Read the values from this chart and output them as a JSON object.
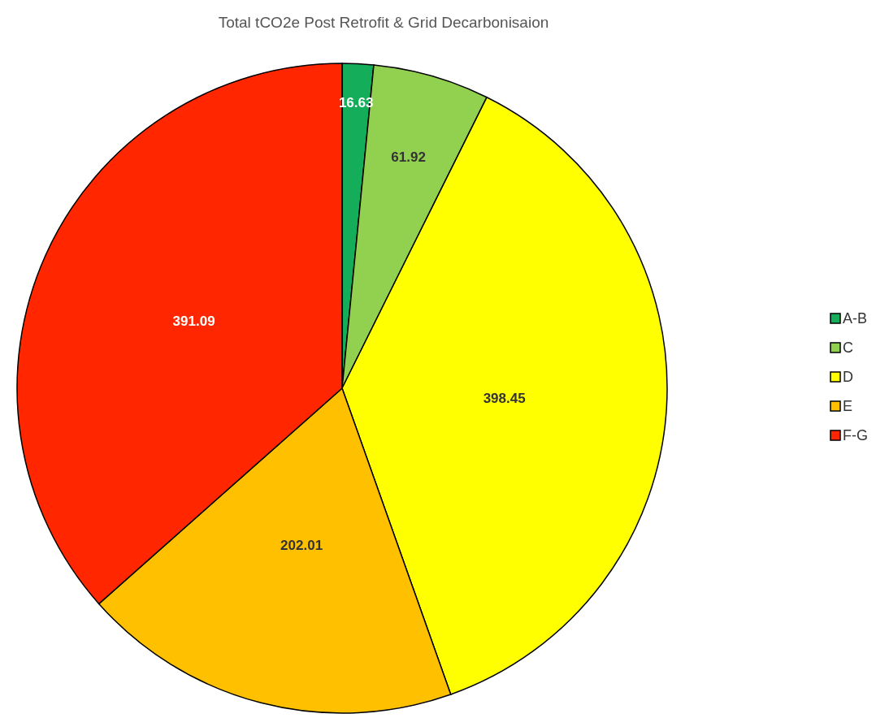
{
  "chart_data": {
    "type": "pie",
    "title": "Total tCO2e Post Retrofit & Grid Decarbonisaion",
    "categories": [
      "A-B",
      "C",
      "D",
      "E",
      "F-G"
    ],
    "values": [
      16.63,
      61.92,
      398.45,
      202.01,
      391.09
    ],
    "colors": [
      "#14ad5a",
      "#92d050",
      "#ffff00",
      "#ffc000",
      "#ff2600"
    ],
    "data_labels": true,
    "legend": "right"
  }
}
